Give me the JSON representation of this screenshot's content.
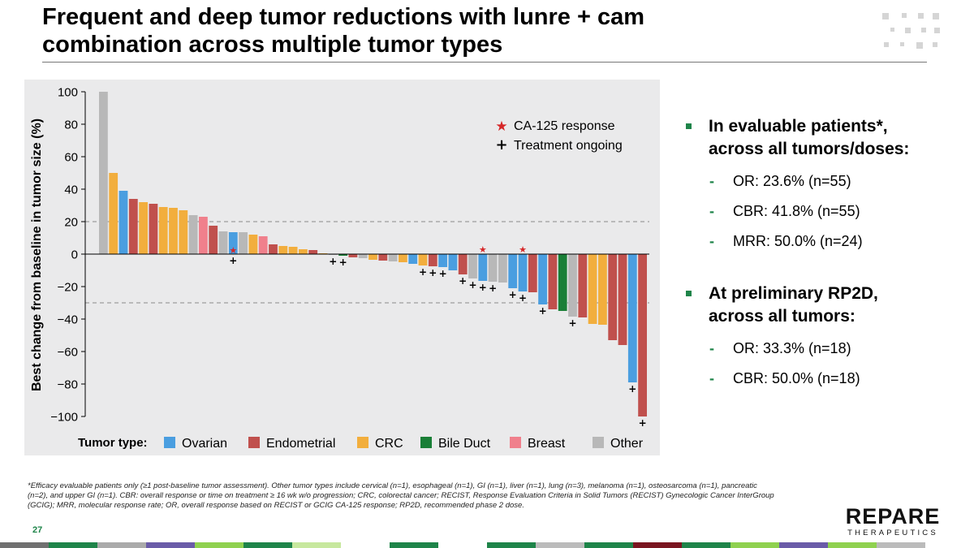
{
  "slide": {
    "title_line1": "Frequent and deep tumor reductions with lunre + cam",
    "title_line2": "combination across multiple tumor types",
    "page_number": "27",
    "footnote": "*Efficacy evaluable patients only (≥1 post-baseline tumor assessment). Other tumor types include cervical (n=1), esophageal (n=1), GI (n=1), liver (n=1), lung (n=3), melanoma (n=1), osteosarcoma (n=1), pancreatic (n=2), and upper GI (n=1). CBR: overall response or time on treatment ≥ 16 wk w/o progression; CRC, colorectal cancer; RECIST, Response Evaluation Criteria in Solid Tumors (RECIST) Gynecologic Cancer InterGroup (GCIG); MRR, molecular response rate; OR, overall response based on RECIST or GCIG CA-125 response; RP2D, recommended phase 2 dose.",
    "brand_name": "REPARE",
    "brand_sub": "THERAPEUTICS"
  },
  "bullets": [
    {
      "text_line1": "In evaluable patients*,",
      "text_line2": "across all tumors/doses:",
      "subs": [
        "OR: 23.6% (n=55)",
        "CBR: 41.8% (n=55)",
        "MRR: 50.0% (n=24)"
      ]
    },
    {
      "text_line1": "At preliminary RP2D,",
      "text_line2": "across all tumors:",
      "subs": [
        "OR: 33.3% (n=18)",
        "CBR: 50.0% (n=18)"
      ]
    }
  ],
  "chart_data": {
    "type": "bar",
    "ylabel": "Best change from baseline in tumor size (%)",
    "ylim": [
      -100,
      100
    ],
    "yticks": [
      100,
      80,
      60,
      40,
      20,
      0,
      -20,
      -40,
      -60,
      -80,
      -100
    ],
    "ytick_labels": [
      "100",
      "80",
      "60",
      "40",
      "20",
      "0",
      "−20",
      "−40",
      "−60",
      "−80",
      "−100"
    ],
    "reference_lines": [
      20,
      -30
    ],
    "legend_title": "Tumor type:",
    "categories": [
      {
        "key": "ovarian",
        "label": "Ovarian",
        "color": "#4a9ee0"
      },
      {
        "key": "endometrial",
        "label": "Endometrial",
        "color": "#c0504d"
      },
      {
        "key": "crc",
        "label": "CRC",
        "color": "#f2ae3d"
      },
      {
        "key": "bile",
        "label": "Bile Duct",
        "color": "#1a7f37"
      },
      {
        "key": "breast",
        "label": "Breast",
        "color": "#f0808c"
      },
      {
        "key": "other",
        "label": "Other",
        "color": "#b8b8b8"
      }
    ],
    "marker_legend": {
      "star_label": "CA-125 response",
      "plus_label": "Treatment ongoing",
      "star_color": "#d62728"
    },
    "bars": [
      {
        "value": 100,
        "type": "other"
      },
      {
        "value": 50,
        "type": "crc"
      },
      {
        "value": 39,
        "type": "ovarian"
      },
      {
        "value": 34,
        "type": "endometrial"
      },
      {
        "value": 32,
        "type": "crc"
      },
      {
        "value": 31,
        "type": "endometrial"
      },
      {
        "value": 29,
        "type": "crc"
      },
      {
        "value": 28.5,
        "type": "crc"
      },
      {
        "value": 27,
        "type": "crc"
      },
      {
        "value": 24,
        "type": "other"
      },
      {
        "value": 23,
        "type": "breast"
      },
      {
        "value": 17.5,
        "type": "endometrial"
      },
      {
        "value": 14,
        "type": "other"
      },
      {
        "value": 13.5,
        "type": "ovarian",
        "star": true,
        "plus": true
      },
      {
        "value": 13.5,
        "type": "other"
      },
      {
        "value": 12,
        "type": "crc"
      },
      {
        "value": 11,
        "type": "breast"
      },
      {
        "value": 6,
        "type": "endometrial"
      },
      {
        "value": 5,
        "type": "crc"
      },
      {
        "value": 4.5,
        "type": "crc"
      },
      {
        "value": 3,
        "type": "crc"
      },
      {
        "value": 2.5,
        "type": "endometrial"
      },
      {
        "value": 0.5,
        "type": "crc"
      },
      {
        "value": -0.5,
        "type": "other",
        "plus": true
      },
      {
        "value": -1,
        "type": "bile",
        "plus": true
      },
      {
        "value": -2,
        "type": "endometrial"
      },
      {
        "value": -2.5,
        "type": "other"
      },
      {
        "value": -3.5,
        "type": "crc"
      },
      {
        "value": -4,
        "type": "endometrial"
      },
      {
        "value": -4.5,
        "type": "other"
      },
      {
        "value": -5,
        "type": "crc"
      },
      {
        "value": -6,
        "type": "ovarian"
      },
      {
        "value": -7,
        "type": "crc",
        "plus": true
      },
      {
        "value": -7.5,
        "type": "endometrial",
        "plus": true
      },
      {
        "value": -8,
        "type": "ovarian",
        "plus": true
      },
      {
        "value": -10,
        "type": "ovarian"
      },
      {
        "value": -12.5,
        "type": "endometrial",
        "plus": true
      },
      {
        "value": -15,
        "type": "other",
        "plus": true
      },
      {
        "value": -16.5,
        "type": "ovarian",
        "star": true,
        "plus": true
      },
      {
        "value": -17,
        "type": "other",
        "plus": true
      },
      {
        "value": -17.5,
        "type": "other"
      },
      {
        "value": -21,
        "type": "ovarian",
        "plus": true
      },
      {
        "value": -23,
        "type": "ovarian",
        "star": true,
        "plus": true
      },
      {
        "value": -23.5,
        "type": "endometrial"
      },
      {
        "value": -31,
        "type": "ovarian",
        "plus": true
      },
      {
        "value": -34,
        "type": "endometrial"
      },
      {
        "value": -35,
        "type": "bile"
      },
      {
        "value": -38.5,
        "type": "other",
        "plus": true
      },
      {
        "value": -39,
        "type": "endometrial"
      },
      {
        "value": -43,
        "type": "crc"
      },
      {
        "value": -43.5,
        "type": "crc"
      },
      {
        "value": -53,
        "type": "endometrial"
      },
      {
        "value": -56,
        "type": "endometrial"
      },
      {
        "value": -79,
        "type": "ovarian",
        "plus": true
      },
      {
        "value": -100,
        "type": "endometrial",
        "plus": true
      }
    ]
  },
  "decor": {
    "bottom_bar_colors": [
      "#707070",
      "#1e8449",
      "#aaaaaa",
      "#6a5ba8",
      "#8fd14f",
      "#1e8449",
      "#c7e89e",
      "#ffffff",
      "#1e8449",
      "#ffffff",
      "#1e8449",
      "#bbbbbb",
      "#1e8449",
      "#7a1520",
      "#1e8449",
      "#8fd14f",
      "#6a5ba8",
      "#8fd14f",
      "#bbbbbb",
      "#ffffff"
    ],
    "dot_color": "#d5d5d5"
  }
}
